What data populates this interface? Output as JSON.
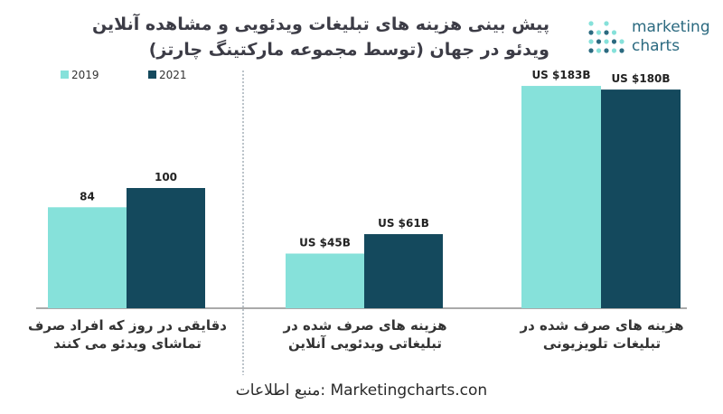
{
  "chart_data": {
    "type": "bar",
    "title": "پیش بینی هزینه های تبلیغات ویدئویی و مشاهده آنلاین ویدئو در جهان (توسط مجموعه مارکتینگ چارتز)",
    "title_lines": [
      "پیش بینی هزینه های تبلیغات ویدئویی و مشاهده آنلاین",
      "ویدئو در جهان (توسط مجموعه مارکتینگ چارتز)"
    ],
    "legend_position": "top-left",
    "grid": false,
    "series": [
      {
        "name": "2019",
        "color": "#86e1da"
      },
      {
        "name": "2021",
        "color": "#14495d"
      }
    ],
    "panels": [
      {
        "category_lines": [
          "دقایقی در روز که افراد صرف",
          "تماشای ویدئو می کنند"
        ],
        "values": [
          84,
          100
        ],
        "data_labels": [
          "84",
          "100"
        ],
        "ylim": [
          0,
          300
        ]
      },
      {
        "category_lines": [
          "هزینه های صرف شده در",
          "تبلیغاتی ویدئویی آنلاین"
        ],
        "values": [
          45,
          61
        ],
        "data_labels": [
          "US $45B",
          "US $61B"
        ],
        "ylim": [
          0,
          200
        ]
      },
      {
        "category_lines": [
          "هزینه های صرف شده در",
          "تبلیغات تلویزیونی"
        ],
        "values": [
          183,
          180
        ],
        "data_labels": [
          "US $183B",
          "US $180B"
        ],
        "ylim": [
          0,
          200
        ]
      }
    ]
  },
  "logo": {
    "line1": "marketing",
    "line2": "charts",
    "icon": "dot-grid-icon"
  },
  "source": "منبع اطلاعات: Marketingcharts.con",
  "colors": {
    "axis": "#555555",
    "divider": "#7a8a94",
    "logo_dots": [
      "#86e1da",
      "#2b6a80"
    ]
  }
}
